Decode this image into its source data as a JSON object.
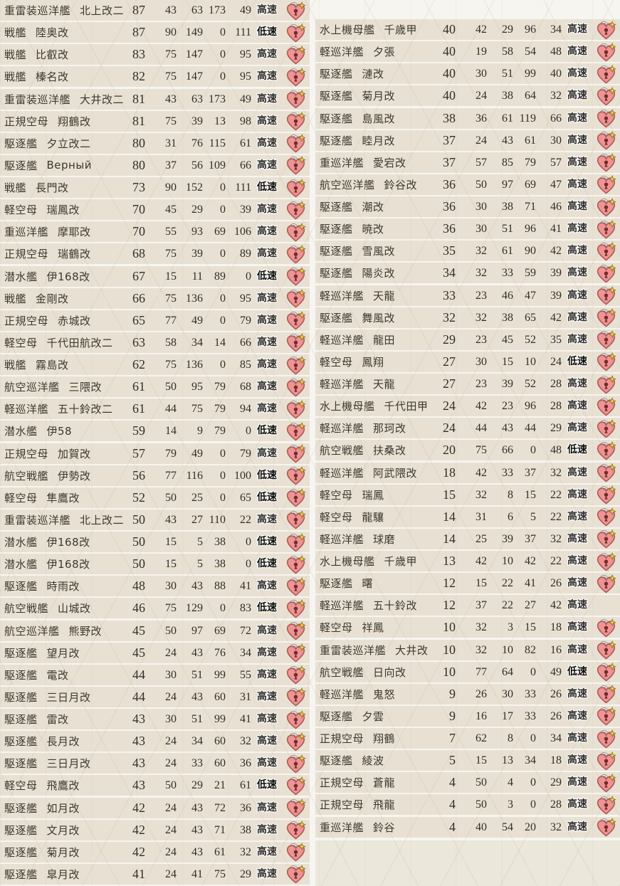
{
  "badges": {
    "fast_label": "高速",
    "slow_label": "低速"
  },
  "icons": {
    "lock": "heart-lock-icon"
  },
  "colors": {
    "page_background": "#f7f5f0",
    "row_background": "#e8e1d3",
    "empty_area_background": "#ece7db",
    "label_text": "#3b382f",
    "number_text": "#2e2d29",
    "badge_text": "#2f2e2b",
    "lock_heart_pink": "#f09393",
    "lock_heart_border": "#ad5a5a",
    "lock_star_yellow": "#f7d145"
  },
  "columns": {
    "left": {
      "rows": [
        {
          "type": "重雷装巡洋艦",
          "name": "北上改二",
          "level": 87,
          "stats": [
            43,
            63,
            173,
            49
          ],
          "speed": "高速",
          "locked": true
        },
        {
          "type": "戦艦",
          "name": "陸奥改",
          "level": 87,
          "stats": [
            90,
            149,
            0,
            111
          ],
          "speed": "低速",
          "locked": true
        },
        {
          "type": "戦艦",
          "name": "比叡改",
          "level": 83,
          "stats": [
            75,
            147,
            0,
            95
          ],
          "speed": "高速",
          "locked": true
        },
        {
          "type": "戦艦",
          "name": "榛名改",
          "level": 82,
          "stats": [
            75,
            147,
            0,
            95
          ],
          "speed": "高速",
          "locked": true
        },
        {
          "type": "重雷装巡洋艦",
          "name": "大井改二",
          "level": 81,
          "stats": [
            43,
            63,
            173,
            49
          ],
          "speed": "高速",
          "locked": true
        },
        {
          "type": "正規空母",
          "name": "翔鶴改",
          "level": 81,
          "stats": [
            75,
            39,
            13,
            98
          ],
          "speed": "高速",
          "locked": true
        },
        {
          "type": "駆逐艦",
          "name": "夕立改二",
          "level": 80,
          "stats": [
            31,
            76,
            115,
            61
          ],
          "speed": "高速",
          "locked": true
        },
        {
          "type": "駆逐艦",
          "name": "Верный",
          "level": 80,
          "stats": [
            37,
            56,
            109,
            66
          ],
          "speed": "高速",
          "locked": true
        },
        {
          "type": "戦艦",
          "name": "長門改",
          "level": 73,
          "stats": [
            90,
            152,
            0,
            111
          ],
          "speed": "低速",
          "locked": true
        },
        {
          "type": "軽空母",
          "name": "瑞鳳改",
          "level": 70,
          "stats": [
            45,
            29,
            0,
            39
          ],
          "speed": "高速",
          "locked": true
        },
        {
          "type": "重巡洋艦",
          "name": "摩耶改",
          "level": 70,
          "stats": [
            55,
            93,
            69,
            106
          ],
          "speed": "高速",
          "locked": true
        },
        {
          "type": "正規空母",
          "name": "瑞鶴改",
          "level": 68,
          "stats": [
            75,
            39,
            0,
            89
          ],
          "speed": "高速",
          "locked": true
        },
        {
          "type": "潜水艦",
          "name": "伊168改",
          "level": 67,
          "stats": [
            15,
            11,
            89,
            0
          ],
          "speed": "低速",
          "locked": true
        },
        {
          "type": "戦艦",
          "name": "金剛改",
          "level": 66,
          "stats": [
            75,
            136,
            0,
            95
          ],
          "speed": "高速",
          "locked": true
        },
        {
          "type": "正規空母",
          "name": "赤城改",
          "level": 65,
          "stats": [
            77,
            49,
            0,
            79
          ],
          "speed": "高速",
          "locked": true
        },
        {
          "type": "軽空母",
          "name": "千代田航改二",
          "level": 63,
          "stats": [
            58,
            34,
            14,
            66
          ],
          "speed": "高速",
          "locked": true
        },
        {
          "type": "戦艦",
          "name": "霧島改",
          "level": 62,
          "stats": [
            75,
            136,
            0,
            85
          ],
          "speed": "高速",
          "locked": true
        },
        {
          "type": "航空巡洋艦",
          "name": "三隈改",
          "level": 61,
          "stats": [
            50,
            95,
            79,
            68
          ],
          "speed": "高速",
          "locked": true
        },
        {
          "type": "軽巡洋艦",
          "name": "五十鈴改二",
          "level": 61,
          "stats": [
            44,
            75,
            79,
            94
          ],
          "speed": "高速",
          "locked": true
        },
        {
          "type": "潜水艦",
          "name": "伊58",
          "level": 59,
          "stats": [
            14,
            9,
            79,
            0
          ],
          "speed": "低速",
          "locked": true
        },
        {
          "type": "正規空母",
          "name": "加賀改",
          "level": 57,
          "stats": [
            79,
            49,
            0,
            79
          ],
          "speed": "高速",
          "locked": true
        },
        {
          "type": "航空戦艦",
          "name": "伊勢改",
          "level": 56,
          "stats": [
            77,
            116,
            0,
            100
          ],
          "speed": "低速",
          "locked": true
        },
        {
          "type": "軽空母",
          "name": "隼鷹改",
          "level": 52,
          "stats": [
            50,
            25,
            0,
            65
          ],
          "speed": "低速",
          "locked": true
        },
        {
          "type": "重雷装巡洋艦",
          "name": "北上改二",
          "level": 50,
          "stats": [
            43,
            27,
            110,
            22
          ],
          "speed": "高速",
          "locked": true
        },
        {
          "type": "潜水艦",
          "name": "伊168改",
          "level": 50,
          "stats": [
            15,
            5,
            38,
            0
          ],
          "speed": "低速",
          "locked": true
        },
        {
          "type": "潜水艦",
          "name": "伊168改",
          "level": 50,
          "stats": [
            15,
            5,
            38,
            0
          ],
          "speed": "低速",
          "locked": true
        },
        {
          "type": "駆逐艦",
          "name": "時雨改",
          "level": 48,
          "stats": [
            30,
            43,
            88,
            41
          ],
          "speed": "高速",
          "locked": true
        },
        {
          "type": "航空戦艦",
          "name": "山城改",
          "level": 46,
          "stats": [
            75,
            129,
            0,
            83
          ],
          "speed": "低速",
          "locked": true
        },
        {
          "type": "航空巡洋艦",
          "name": "熊野改",
          "level": 45,
          "stats": [
            50,
            97,
            69,
            72
          ],
          "speed": "高速",
          "locked": true
        },
        {
          "type": "駆逐艦",
          "name": "望月改",
          "level": 45,
          "stats": [
            24,
            43,
            76,
            34
          ],
          "speed": "高速",
          "locked": true
        },
        {
          "type": "駆逐艦",
          "name": "電改",
          "level": 44,
          "stats": [
            30,
            51,
            99,
            55
          ],
          "speed": "高速",
          "locked": true
        },
        {
          "type": "駆逐艦",
          "name": "三日月改",
          "level": 44,
          "stats": [
            24,
            43,
            60,
            31
          ],
          "speed": "高速",
          "locked": true
        },
        {
          "type": "駆逐艦",
          "name": "雷改",
          "level": 43,
          "stats": [
            30,
            51,
            99,
            41
          ],
          "speed": "高速",
          "locked": true
        },
        {
          "type": "駆逐艦",
          "name": "長月改",
          "level": 43,
          "stats": [
            24,
            34,
            60,
            32
          ],
          "speed": "高速",
          "locked": true
        },
        {
          "type": "駆逐艦",
          "name": "三日月改",
          "level": 43,
          "stats": [
            24,
            33,
            60,
            36
          ],
          "speed": "高速",
          "locked": true
        },
        {
          "type": "軽空母",
          "name": "飛鷹改",
          "level": 43,
          "stats": [
            50,
            29,
            21,
            61
          ],
          "speed": "低速",
          "locked": true
        },
        {
          "type": "駆逐艦",
          "name": "如月改",
          "level": 42,
          "stats": [
            24,
            43,
            72,
            36
          ],
          "speed": "高速",
          "locked": true
        },
        {
          "type": "駆逐艦",
          "name": "文月改",
          "level": 42,
          "stats": [
            24,
            43,
            71,
            38
          ],
          "speed": "高速",
          "locked": true
        },
        {
          "type": "駆逐艦",
          "name": "菊月改",
          "level": 42,
          "stats": [
            24,
            43,
            61,
            32
          ],
          "speed": "高速",
          "locked": true
        },
        {
          "type": "駆逐艦",
          "name": "皐月改",
          "level": 41,
          "stats": [
            24,
            41,
            75,
            29
          ],
          "speed": "高速",
          "locked": true
        }
      ]
    },
    "right": {
      "rows": [
        {
          "type": "水上機母艦",
          "name": "千歳甲",
          "level": 40,
          "stats": [
            42,
            29,
            96,
            34
          ],
          "speed": "高速",
          "locked": true
        },
        {
          "type": "軽巡洋艦",
          "name": "夕張",
          "level": 40,
          "stats": [
            19,
            58,
            54,
            48
          ],
          "speed": "高速",
          "locked": true
        },
        {
          "type": "駆逐艦",
          "name": "漣改",
          "level": 40,
          "stats": [
            30,
            51,
            99,
            40
          ],
          "speed": "高速",
          "locked": true
        },
        {
          "type": "駆逐艦",
          "name": "菊月改",
          "level": 40,
          "stats": [
            24,
            38,
            64,
            32
          ],
          "speed": "高速",
          "locked": true
        },
        {
          "type": "駆逐艦",
          "name": "島風改",
          "level": 38,
          "stats": [
            36,
            61,
            119,
            66
          ],
          "speed": "高速",
          "locked": true
        },
        {
          "type": "駆逐艦",
          "name": "睦月改",
          "level": 37,
          "stats": [
            24,
            43,
            61,
            30
          ],
          "speed": "高速",
          "locked": true
        },
        {
          "type": "重巡洋艦",
          "name": "愛宕改",
          "level": 37,
          "stats": [
            57,
            85,
            79,
            57
          ],
          "speed": "高速",
          "locked": true
        },
        {
          "type": "航空巡洋艦",
          "name": "鈴谷改",
          "level": 36,
          "stats": [
            50,
            97,
            69,
            47
          ],
          "speed": "高速",
          "locked": true
        },
        {
          "type": "駆逐艦",
          "name": "潮改",
          "level": 36,
          "stats": [
            30,
            38,
            71,
            46
          ],
          "speed": "高速",
          "locked": true
        },
        {
          "type": "駆逐艦",
          "name": "暁改",
          "level": 36,
          "stats": [
            30,
            51,
            96,
            41
          ],
          "speed": "高速",
          "locked": true
        },
        {
          "type": "駆逐艦",
          "name": "雪風改",
          "level": 35,
          "stats": [
            32,
            61,
            90,
            42
          ],
          "speed": "高速",
          "locked": true
        },
        {
          "type": "駆逐艦",
          "name": "陽炎改",
          "level": 34,
          "stats": [
            32,
            33,
            59,
            39
          ],
          "speed": "高速",
          "locked": true
        },
        {
          "type": "軽巡洋艦",
          "name": "天龍",
          "level": 33,
          "stats": [
            23,
            46,
            47,
            39
          ],
          "speed": "高速",
          "locked": true
        },
        {
          "type": "駆逐艦",
          "name": "舞風改",
          "level": 32,
          "stats": [
            32,
            38,
            65,
            42
          ],
          "speed": "高速",
          "locked": true
        },
        {
          "type": "軽巡洋艦",
          "name": "龍田",
          "level": 29,
          "stats": [
            23,
            45,
            52,
            35
          ],
          "speed": "高速",
          "locked": true
        },
        {
          "type": "軽空母",
          "name": "鳳翔",
          "level": 27,
          "stats": [
            30,
            15,
            10,
            24
          ],
          "speed": "低速",
          "locked": true
        },
        {
          "type": "軽巡洋艦",
          "name": "天龍",
          "level": 27,
          "stats": [
            23,
            39,
            52,
            28
          ],
          "speed": "高速",
          "locked": true
        },
        {
          "type": "水上機母艦",
          "name": "千代田甲",
          "level": 24,
          "stats": [
            42,
            23,
            96,
            28
          ],
          "speed": "高速",
          "locked": true
        },
        {
          "type": "軽巡洋艦",
          "name": "那珂改",
          "level": 24,
          "stats": [
            44,
            43,
            44,
            29
          ],
          "speed": "高速",
          "locked": true
        },
        {
          "type": "航空戦艦",
          "name": "扶桑改",
          "level": 20,
          "stats": [
            75,
            66,
            0,
            48
          ],
          "speed": "低速",
          "locked": true
        },
        {
          "type": "軽巡洋艦",
          "name": "阿武隈改",
          "level": 18,
          "stats": [
            42,
            33,
            37,
            32
          ],
          "speed": "高速",
          "locked": true
        },
        {
          "type": "軽空母",
          "name": "瑞鳳",
          "level": 15,
          "stats": [
            32,
            8,
            15,
            22
          ],
          "speed": "高速",
          "locked": true
        },
        {
          "type": "軽空母",
          "name": "龍驤",
          "level": 14,
          "stats": [
            31,
            6,
            5,
            22
          ],
          "speed": "高速",
          "locked": true
        },
        {
          "type": "軽巡洋艦",
          "name": "球磨",
          "level": 14,
          "stats": [
            25,
            39,
            37,
            32
          ],
          "speed": "高速",
          "locked": true
        },
        {
          "type": "水上機母艦",
          "name": "千歳甲",
          "level": 13,
          "stats": [
            42,
            10,
            42,
            22
          ],
          "speed": "高速",
          "locked": true
        },
        {
          "type": "駆逐艦",
          "name": "曙",
          "level": 12,
          "stats": [
            15,
            22,
            41,
            26
          ],
          "speed": "高速",
          "locked": true
        },
        {
          "type": "軽巡洋艦",
          "name": "五十鈴改",
          "level": 12,
          "stats": [
            37,
            22,
            27,
            42
          ],
          "speed": "高速",
          "locked": false
        },
        {
          "type": "軽空母",
          "name": "祥鳳",
          "level": 10,
          "stats": [
            32,
            3,
            15,
            18
          ],
          "speed": "高速",
          "locked": true
        },
        {
          "type": "重雷装巡洋艦",
          "name": "大井改",
          "level": 10,
          "stats": [
            32,
            10,
            82,
            16
          ],
          "speed": "高速",
          "locked": true
        },
        {
          "type": "航空戦艦",
          "name": "日向改",
          "level": 10,
          "stats": [
            77,
            64,
            0,
            49
          ],
          "speed": "低速",
          "locked": true
        },
        {
          "type": "軽巡洋艦",
          "name": "鬼怒",
          "level": 9,
          "stats": [
            26,
            30,
            33,
            26
          ],
          "speed": "高速",
          "locked": true
        },
        {
          "type": "駆逐艦",
          "name": "夕雲",
          "level": 9,
          "stats": [
            16,
            17,
            33,
            26
          ],
          "speed": "高速",
          "locked": true
        },
        {
          "type": "正規空母",
          "name": "翔鶴",
          "level": 7,
          "stats": [
            62,
            8,
            0,
            34
          ],
          "speed": "高速",
          "locked": true
        },
        {
          "type": "駆逐艦",
          "name": "綾波",
          "level": 5,
          "stats": [
            15,
            13,
            34,
            18
          ],
          "speed": "高速",
          "locked": true
        },
        {
          "type": "正規空母",
          "name": "蒼龍",
          "level": 4,
          "stats": [
            50,
            4,
            0,
            29
          ],
          "speed": "高速",
          "locked": true
        },
        {
          "type": "正規空母",
          "name": "飛龍",
          "level": 4,
          "stats": [
            50,
            3,
            0,
            28
          ],
          "speed": "高速",
          "locked": true
        },
        {
          "type": "重巡洋艦",
          "name": "鈴谷",
          "level": 4,
          "stats": [
            40,
            54,
            20,
            32
          ],
          "speed": "高速",
          "locked": true
        }
      ]
    }
  }
}
